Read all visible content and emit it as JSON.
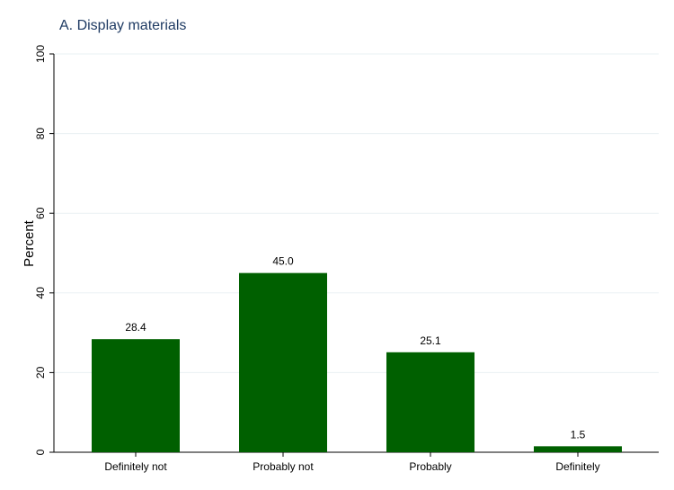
{
  "chart_data": {
    "type": "bar",
    "title": "A. Display materials",
    "xlabel": "",
    "ylabel": "Percent",
    "categories": [
      "Definitely not",
      "Probably not",
      "Probably",
      "Definitely"
    ],
    "values": [
      28.4,
      45.0,
      25.1,
      1.5
    ],
    "value_labels": [
      "28.4",
      "45.0",
      "25.1",
      "1.5"
    ],
    "ylim": [
      0,
      100
    ],
    "yticks": [
      0,
      20,
      40,
      60,
      80,
      100
    ],
    "ytick_labels": [
      "0",
      "20",
      "40",
      "60",
      "80",
      "100"
    ],
    "grid": true,
    "legend": "none",
    "bar_color": "#006000",
    "grid_color": "#eaf0f3",
    "title_color": "#1f3b63"
  }
}
